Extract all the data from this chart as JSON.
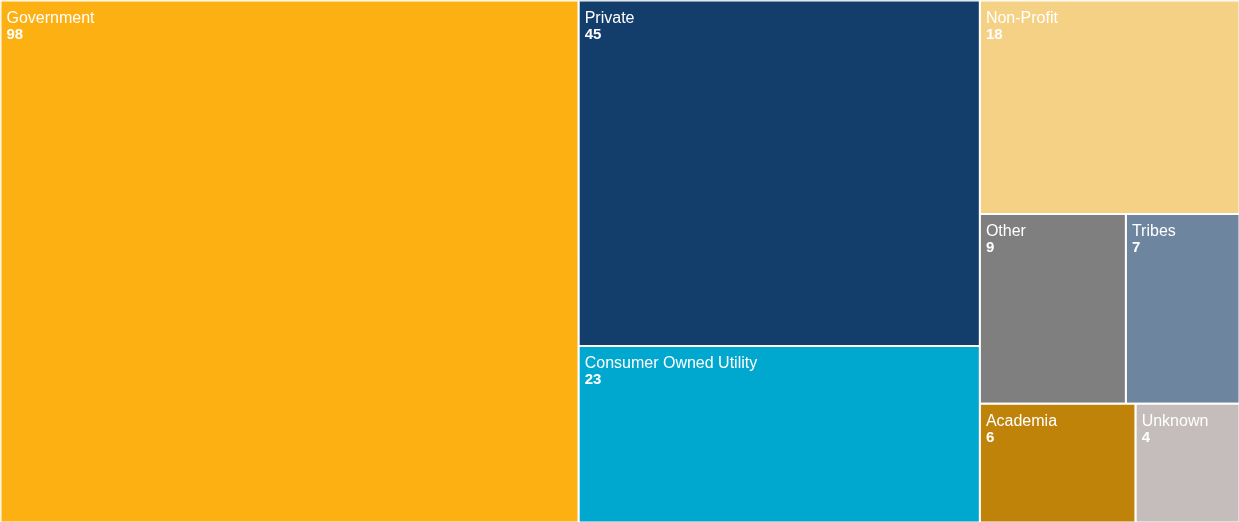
{
  "chart_data": {
    "type": "other",
    "categories": [
      "Government",
      "Private",
      "Consumer Owned Utility",
      "Non-Profit",
      "Other",
      "Tribes",
      "Academia",
      "Unknown"
    ],
    "values": [
      98,
      45,
      23,
      18,
      9,
      7,
      6,
      4
    ],
    "colors": [
      "#fdb011",
      "#133d6b",
      "#00a7ce",
      "#f5d185",
      "#7f7f7f",
      "#6d859e",
      "#bf830a",
      "#c4bdbb"
    ],
    "data_labels": true
  }
}
